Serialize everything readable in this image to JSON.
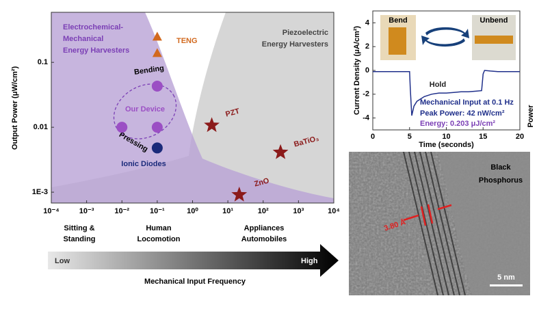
{
  "chart_data": [
    {
      "type": "scatter",
      "xscale": "log",
      "yscale": "log",
      "ylabel": "Output Power (μW/cm²)",
      "xlim": [
        0.0001,
        10000
      ],
      "ylim": [
        0.00068,
        0.59
      ],
      "xticks": [
        {
          "value": 0.0001,
          "label": "10⁻⁴"
        },
        {
          "value": 0.001,
          "label": "10⁻³"
        },
        {
          "value": 0.01,
          "label": "10⁻²"
        },
        {
          "value": 0.1,
          "label": "10⁻¹"
        },
        {
          "value": 1,
          "label": "10⁰"
        },
        {
          "value": 10,
          "label": "10¹"
        },
        {
          "value": 100,
          "label": "10²"
        },
        {
          "value": 1000,
          "label": "10³"
        },
        {
          "value": 10000,
          "label": "10⁴"
        }
      ],
      "yticks": [
        {
          "value": 0.001,
          "label": "1E-3"
        },
        0.01,
        0.1
      ],
      "regions": [
        {
          "lines": [
            "Electrochemical-",
            "Mechanical",
            "Energy Harvesters"
          ],
          "color": "#7b3fb5"
        },
        {
          "lines": [
            "Piezoelectric",
            "Energy Harvesters"
          ],
          "color": "#444444"
        }
      ],
      "annotations": [
        "Bending",
        "Pressing"
      ],
      "region_labels": [
        {
          "lines": [
            "Sitting &",
            "Standing"
          ]
        },
        {
          "lines": [
            "Human",
            "Locomotion"
          ]
        },
        {
          "lines": [
            "Appliances",
            "Automobiles"
          ]
        }
      ],
      "series": [
        {
          "name": "TENG",
          "color": "#d2691e",
          "marker": "triangle",
          "x": [
            0.1,
            0.1
          ],
          "values": [
            0.25,
            0.14
          ]
        },
        {
          "name": "Our Device",
          "color": "#9b4fc4",
          "marker": "circle",
          "x": [
            0.1,
            0.01,
            0.1
          ],
          "values": [
            0.043,
            0.01,
            0.01
          ]
        },
        {
          "name": "Ionic Diodes",
          "color": "#1a2a7a",
          "marker": "circle",
          "x": [
            0.1
          ],
          "values": [
            0.0048
          ]
        },
        {
          "name": "PZT",
          "color": "#8b1a1a",
          "marker": "star",
          "x": [
            3.5
          ],
          "values": [
            0.0107
          ]
        },
        {
          "name": "BaTiO₃",
          "color": "#8b1a1a",
          "marker": "star",
          "x": [
            310
          ],
          "values": [
            0.0041
          ]
        },
        {
          "name": "ZnO",
          "color": "#8b1a1a",
          "marker": "star",
          "x": [
            21
          ],
          "values": [
            0.00091
          ]
        }
      ]
    },
    {
      "type": "line",
      "xlabel": "Time (seconds)",
      "ylabel": "Current Density (μA/cm²)",
      "y2label": "Power",
      "xlim": [
        0,
        20
      ],
      "ylim": [
        -5,
        5
      ],
      "xticks": [
        0,
        5,
        10,
        15,
        20
      ],
      "yticks": [
        -4,
        -2,
        0,
        2,
        4
      ],
      "annotations": [
        "Hold",
        "Mechanical Input at 0.1 Hz",
        "Peak Power: 42 nW/cm²",
        "Energy: 0.203 μJ/cm²"
      ],
      "series": [
        {
          "name": null,
          "color": "#1f2f8a",
          "x": [
            0,
            1,
            2,
            3,
            4,
            5,
            5.1,
            5.3,
            5.6,
            6,
            7,
            8,
            9,
            10,
            11,
            12,
            13,
            14,
            14.8,
            15,
            15.2,
            16,
            17,
            18,
            19,
            20
          ],
          "values": [
            -0.1,
            -0.1,
            -0.1,
            -0.1,
            -0.1,
            -0.1,
            -1.5,
            -3.8,
            -3.0,
            -2.6,
            -2.2,
            -2.0,
            -1.9,
            -1.9,
            -1.85,
            -1.8,
            -1.8,
            -1.75,
            -1.7,
            -0.3,
            0.0,
            -0.05,
            -0.1,
            -0.1,
            -0.1,
            -0.1
          ]
        }
      ]
    }
  ],
  "figure": {
    "photo_bend": "Bend",
    "photo_unbend": "Unbend",
    "arrow_low": "Low",
    "arrow_high": "High",
    "arrow_label": "Mechanical Input Frequency",
    "tem_title": [
      "Black",
      "Phosphorus"
    ],
    "tem_spacing": "3.80 Å",
    "tem_scale": "5 nm"
  }
}
